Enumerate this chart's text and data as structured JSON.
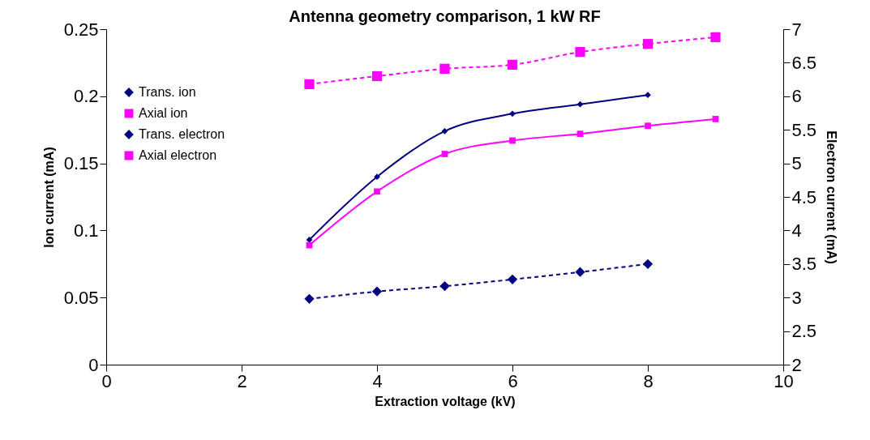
{
  "chart_data": {
    "type": "line",
    "title": "Antenna geometry comparison, 1 kW RF",
    "xlabel": "Extraction voltage (kV)",
    "ylabel": "Ion current (mA)",
    "y2label": "Electron current (mA)",
    "x": [
      3,
      4,
      5,
      6,
      7,
      8,
      9
    ],
    "series": [
      {
        "name": "Trans. ion",
        "color": "#000080",
        "marker": "diamond",
        "line_style": "solid",
        "values": [
          0.093,
          0.14,
          0.174,
          0.187,
          0.194,
          0.201,
          null
        ]
      },
      {
        "name": "Axial ion",
        "color": "#ff00ff",
        "marker": "square",
        "line_style": "solid",
        "values": [
          0.089,
          0.129,
          0.157,
          0.167,
          0.172,
          0.178,
          0.183
        ]
      },
      {
        "name": "Trans. electron",
        "color": "#000080",
        "marker": "diamond",
        "line_style": "dashed",
        "axis": "y2",
        "values": [
          2.98,
          3.09,
          3.17,
          3.27,
          3.38,
          3.5,
          null
        ]
      },
      {
        "name": "Axial electron",
        "color": "#ff00ff",
        "marker": "square",
        "line_style": "dashed",
        "axis": "y2",
        "values": [
          6.18,
          6.3,
          6.41,
          6.47,
          6.66,
          6.78,
          6.88
        ]
      }
    ],
    "xlim": [
      0,
      10
    ],
    "xticks": [
      0,
      2,
      4,
      6,
      8,
      10
    ],
    "ylim": [
      0,
      0.25
    ],
    "yticks": [
      0,
      0.05,
      0.1,
      0.15,
      0.2,
      0.25
    ],
    "y2lim": [
      2,
      7
    ],
    "y2ticks": [
      2,
      2.5,
      3,
      3.5,
      4,
      4.5,
      5,
      5.5,
      6,
      6.5,
      7
    ],
    "grid": false,
    "legend": "top left"
  }
}
